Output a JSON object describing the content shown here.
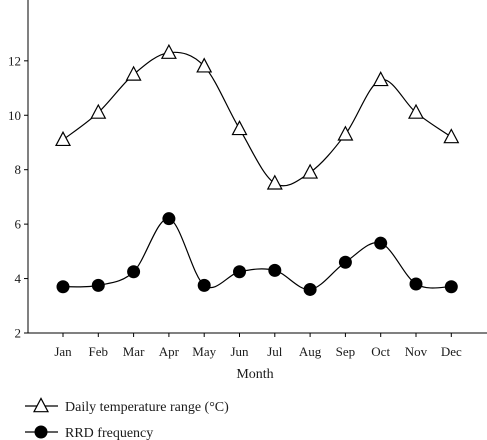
{
  "chart_data": {
    "type": "line",
    "categories": [
      "Jan",
      "Feb",
      "Mar",
      "Apr",
      "May",
      "Jun",
      "Jul",
      "Aug",
      "Sep",
      "Oct",
      "Nov",
      "Dec"
    ],
    "xlabel": "Month",
    "ylabel": "",
    "ylim": [
      2,
      13.5
    ],
    "yticks": [
      2,
      4,
      6,
      8,
      10,
      12
    ],
    "grid": false,
    "legend_position": "bottom-left",
    "series": [
      {
        "name": "Daily temperature range (°C)",
        "marker": "open-triangle",
        "color": "#000000",
        "values": [
          9.1,
          10.1,
          11.5,
          12.3,
          11.8,
          9.5,
          7.5,
          7.9,
          9.3,
          11.3,
          10.1,
          9.2
        ]
      },
      {
        "name": "RRD frequency",
        "marker": "filled-circle",
        "color": "#000000",
        "values": [
          3.7,
          3.75,
          4.25,
          6.2,
          3.75,
          4.25,
          4.3,
          3.6,
          4.6,
          5.3,
          3.8,
          3.7
        ]
      }
    ]
  }
}
